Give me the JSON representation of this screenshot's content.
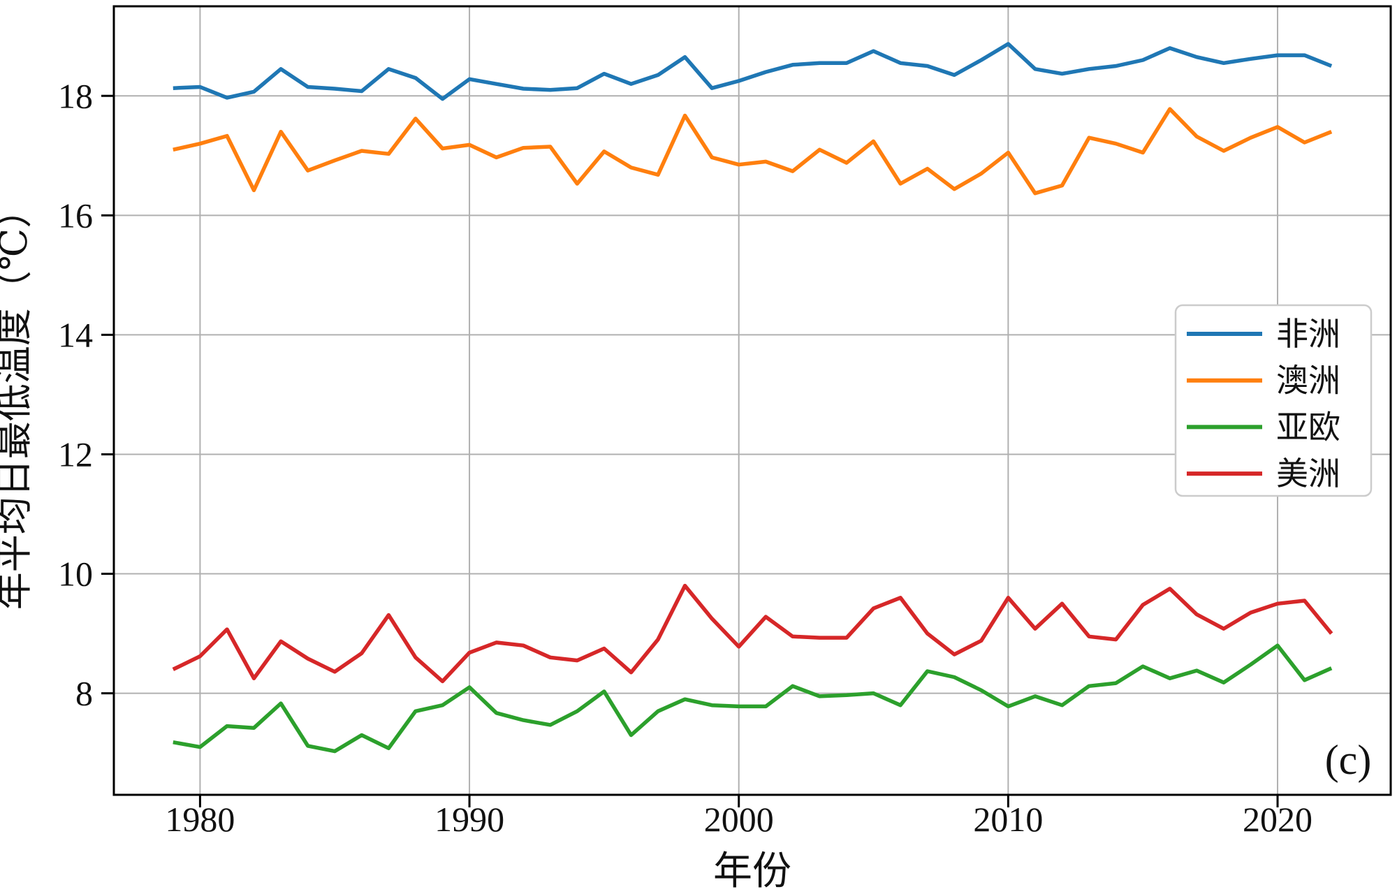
{
  "chart_data": {
    "type": "line",
    "title": "",
    "xlabel": "年份",
    "ylabel": "年平均日最低温度（℃）",
    "annotation": "(c)",
    "x_ticks": [
      1980,
      1990,
      2000,
      2010,
      2020
    ],
    "y_ticks": [
      8,
      10,
      12,
      14,
      16,
      18
    ],
    "xlim": [
      1976.8,
      2024.2
    ],
    "ylim": [
      6.3,
      19.5
    ],
    "grid": true,
    "grid_color": "#b0b0b0",
    "frame_color": "#000000",
    "background": "#ffffff",
    "legend_position": "center right",
    "x": [
      1979,
      1980,
      1981,
      1982,
      1983,
      1984,
      1985,
      1986,
      1987,
      1988,
      1989,
      1990,
      1991,
      1992,
      1993,
      1994,
      1995,
      1996,
      1997,
      1998,
      1999,
      2000,
      2001,
      2002,
      2003,
      2004,
      2005,
      2006,
      2007,
      2008,
      2009,
      2010,
      2011,
      2012,
      2013,
      2014,
      2015,
      2016,
      2017,
      2018,
      2019,
      2020,
      2021,
      2022
    ],
    "series": [
      {
        "key": "africa",
        "name": "非洲",
        "color": "#1f77b4",
        "values": [
          18.13,
          18.15,
          17.97,
          18.07,
          18.45,
          18.15,
          18.12,
          18.08,
          18.45,
          18.3,
          17.95,
          18.28,
          18.2,
          18.12,
          18.1,
          18.13,
          18.37,
          18.2,
          18.35,
          18.65,
          18.13,
          18.25,
          18.4,
          18.52,
          18.55,
          18.55,
          18.75,
          18.55,
          18.5,
          18.35,
          18.6,
          18.87,
          18.45,
          18.37,
          18.45,
          18.5,
          18.6,
          18.8,
          18.65,
          18.55,
          18.62,
          18.68,
          18.68,
          18.5
        ]
      },
      {
        "key": "australia",
        "name": "澳洲",
        "color": "#ff7f0e",
        "values": [
          17.1,
          17.2,
          17.33,
          16.42,
          17.4,
          16.75,
          16.92,
          17.08,
          17.03,
          17.62,
          17.12,
          17.18,
          16.97,
          17.13,
          17.15,
          16.53,
          17.07,
          16.8,
          16.68,
          17.67,
          16.97,
          16.85,
          16.9,
          16.74,
          17.1,
          16.88,
          17.24,
          16.53,
          16.78,
          16.44,
          16.7,
          17.05,
          16.37,
          16.5,
          17.3,
          17.2,
          17.05,
          17.78,
          17.32,
          17.08,
          17.3,
          17.48,
          17.22,
          17.4
        ]
      },
      {
        "key": "eurasia",
        "name": "亚欧",
        "color": "#2ca02c",
        "values": [
          7.18,
          7.1,
          7.45,
          7.42,
          7.83,
          7.12,
          7.03,
          7.3,
          7.08,
          7.7,
          7.8,
          8.1,
          7.67,
          7.55,
          7.47,
          7.7,
          8.03,
          7.3,
          7.7,
          7.9,
          7.8,
          7.78,
          7.78,
          8.12,
          7.95,
          7.97,
          8.0,
          7.8,
          8.37,
          8.27,
          8.05,
          7.78,
          7.95,
          7.8,
          8.12,
          8.17,
          8.45,
          8.25,
          8.38,
          8.18,
          8.48,
          8.8,
          8.22,
          8.42
        ]
      },
      {
        "key": "americas",
        "name": "美洲",
        "color": "#d62728",
        "values": [
          8.4,
          8.62,
          9.07,
          8.25,
          8.87,
          8.58,
          8.36,
          8.67,
          9.31,
          8.6,
          8.2,
          8.68,
          8.85,
          8.8,
          8.6,
          8.55,
          8.75,
          8.35,
          8.9,
          9.8,
          9.25,
          8.78,
          9.28,
          8.95,
          8.93,
          8.93,
          9.42,
          9.6,
          9.0,
          8.65,
          8.88,
          9.6,
          9.08,
          9.5,
          8.95,
          8.9,
          9.48,
          9.75,
          9.32,
          9.08,
          9.35,
          9.5,
          9.55,
          9.0
        ]
      }
    ]
  }
}
